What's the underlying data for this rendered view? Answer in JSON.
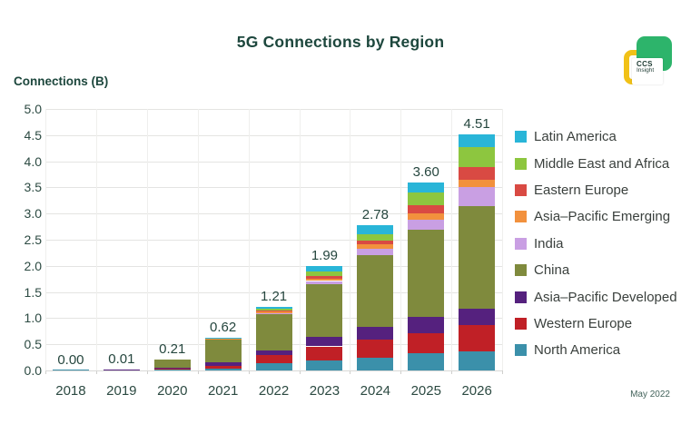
{
  "header": {
    "title": "5G Connections by Region"
  },
  "logo": {
    "line1": "CCS",
    "line2": "Insight",
    "green": "#2db46b",
    "yellow": "#f1c117"
  },
  "footer": {
    "date_label": "May 2022"
  },
  "chart_data": {
    "type": "bar",
    "stacked": true,
    "title": "5G Connections by Region",
    "ylabel": "Connections (B)",
    "xlabel": "",
    "grid": true,
    "legend_position": "right",
    "ylim": [
      0,
      5.0
    ],
    "yticks": [
      "0.0",
      "0.5",
      "1.0",
      "1.5",
      "2.0",
      "2.5",
      "3.0",
      "3.5",
      "4.0",
      "4.5",
      "5.0"
    ],
    "categories": [
      "2018",
      "2019",
      "2020",
      "2021",
      "2022",
      "2023",
      "2024",
      "2025",
      "2026"
    ],
    "totals": [
      "0.00",
      "0.01",
      "0.21",
      "0.62",
      "1.21",
      "1.99",
      "2.78",
      "3.60",
      "4.51"
    ],
    "series": [
      {
        "name": "North America",
        "color": "#3b90aa",
        "values": [
          0.002,
          0.005,
          0.02,
          0.03,
          0.14,
          0.19,
          0.25,
          0.33,
          0.37
        ]
      },
      {
        "name": "Western Europe",
        "color": "#c02026",
        "values": [
          0,
          0.003,
          0.01,
          0.05,
          0.15,
          0.27,
          0.34,
          0.38,
          0.49
        ]
      },
      {
        "name": "Asia–Pacific Developed",
        "color": "#55217e",
        "values": [
          0,
          0.002,
          0.03,
          0.07,
          0.09,
          0.19,
          0.24,
          0.32,
          0.32
        ]
      },
      {
        "name": "China",
        "color": "#7f8a3d",
        "values": [
          0,
          0,
          0.15,
          0.44,
          0.7,
          1.0,
          1.37,
          1.66,
          1.96
        ]
      },
      {
        "name": "India",
        "color": "#c99fe3",
        "values": [
          0,
          0,
          0,
          0.005,
          0.02,
          0.06,
          0.12,
          0.19,
          0.37
        ]
      },
      {
        "name": "Asia–Pacific Emerging",
        "color": "#f2913d",
        "values": [
          0,
          0,
          0,
          0.005,
          0.02,
          0.05,
          0.09,
          0.13,
          0.14
        ]
      },
      {
        "name": "Eastern Europe",
        "color": "#d94a43",
        "values": [
          0,
          0,
          0,
          0.01,
          0.03,
          0.05,
          0.08,
          0.15,
          0.24
        ]
      },
      {
        "name": "Middle East and Africa",
        "color": "#8dc63f",
        "values": [
          0,
          0,
          0,
          0.005,
          0.03,
          0.09,
          0.12,
          0.24,
          0.38
        ]
      },
      {
        "name": "Latin America",
        "color": "#29b5d8",
        "values": [
          0,
          0,
          0,
          0.005,
          0.03,
          0.09,
          0.17,
          0.2,
          0.24
        ]
      }
    ]
  }
}
